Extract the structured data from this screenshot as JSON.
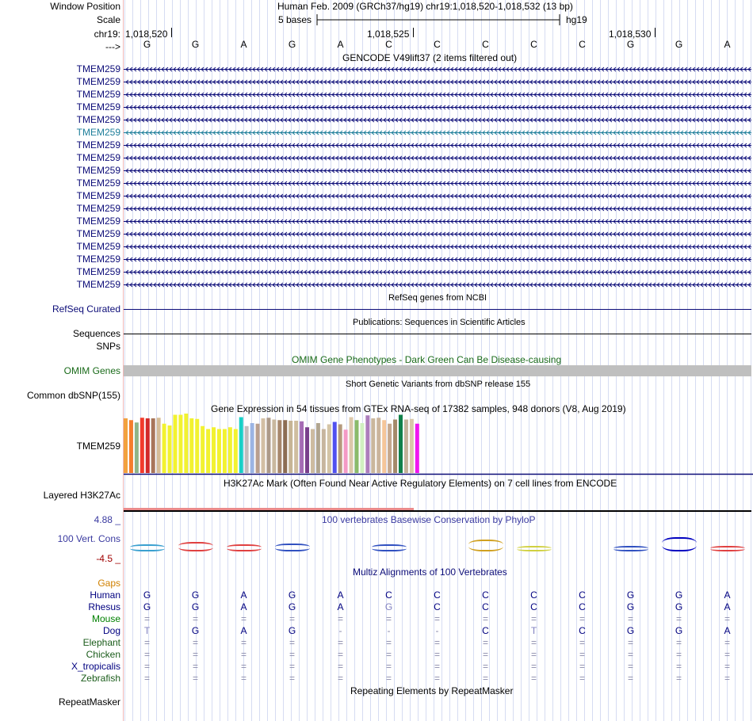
{
  "header": {
    "window_position_label": "Window Position",
    "scale_label": "Scale",
    "chrom_label": "chr19:",
    "strand_label": "--->",
    "assembly_title": "Human Feb. 2009 (GRCh37/hg19)   chr19:1,018,520-1,018,532 (13 bp)",
    "scale_text": "5 bases",
    "scale_db": "hg19",
    "ticks": [
      "1,018,520",
      "1,018,525",
      "1,018,530"
    ]
  },
  "bases": [
    "G",
    "G",
    "A",
    "G",
    "A",
    "C",
    "C",
    "C",
    "C",
    "C",
    "G",
    "G",
    "A"
  ],
  "gencode": {
    "title": "GENCODE V49lift37 (2 items filtered out)",
    "genes": [
      "TMEM259",
      "TMEM259",
      "TMEM259",
      "TMEM259",
      "TMEM259",
      "TMEM259",
      "TMEM259",
      "TMEM259",
      "TMEM259",
      "TMEM259",
      "TMEM259",
      "TMEM259",
      "TMEM259",
      "TMEM259",
      "TMEM259",
      "TMEM259",
      "TMEM259",
      "TMEM259"
    ],
    "highlight_index": 5,
    "gene_color": "#0c0c78",
    "highlight_color": "#1e7e9a"
  },
  "refseq": {
    "caption": "RefSeq genes from NCBI",
    "label": "RefSeq Curated"
  },
  "publications": {
    "caption": "Publications: Sequences in Scientific Articles",
    "label": "Sequences"
  },
  "snps": {
    "label": "SNPs"
  },
  "omim": {
    "caption": "OMIM Gene Phenotypes - Dark Green Can Be Disease-causing",
    "label": "OMIM Genes"
  },
  "dbsnp": {
    "caption": "Short Genetic Variants from dbSNP release 155",
    "label": "Common dbSNP(155)"
  },
  "gtex": {
    "caption": "Gene Expression in 54 tissues from GTEx RNA-seq of 17382 samples, 948 donors (V8, Aug 2019)",
    "label": "TMEM259",
    "values": [
      0.92,
      0.89,
      0.85,
      0.93,
      0.92,
      0.92,
      0.93,
      0.83,
      0.8,
      0.98,
      0.98,
      1.0,
      0.92,
      0.91,
      0.79,
      0.74,
      0.77,
      0.74,
      0.74,
      0.77,
      0.74,
      0.94,
      0.79,
      0.84,
      0.83,
      0.92,
      0.93,
      0.9,
      0.89,
      0.89,
      0.88,
      0.88,
      0.87,
      0.77,
      0.74,
      0.84,
      0.74,
      0.82,
      0.86,
      0.82,
      0.73,
      0.94,
      0.89,
      0.84,
      0.97,
      0.92,
      0.93,
      0.89,
      0.83,
      0.9,
      0.98,
      0.9,
      0.91,
      0.83
    ],
    "colors": [
      "#f2a13e",
      "#f57d2c",
      "#8fb487",
      "#f23b2c",
      "#d22929",
      "#a8755a",
      "#d6bc97",
      "#f2f230",
      "#f2f230",
      "#f2f230",
      "#f2f230",
      "#f2f230",
      "#f2f230",
      "#f2f230",
      "#f2f230",
      "#f2f230",
      "#f2f230",
      "#f2f230",
      "#f2f230",
      "#f2f230",
      "#f2f230",
      "#18d0c7",
      "#c1bcbd",
      "#9bb4e4",
      "#b99f8f",
      "#d3bfa4",
      "#ad9a89",
      "#c9b89e",
      "#a7876b",
      "#8d6d52",
      "#c6b595",
      "#cfbe9f",
      "#a56bb5",
      "#7a3f8c",
      "#cdbba0",
      "#b0a590",
      "#c7b59e",
      "#d4c4a6",
      "#5050f0",
      "#b49a7c",
      "#f49ac6",
      "#dcc8aa",
      "#8bbb6a",
      "#d1f0c0",
      "#ad7dbc",
      "#cab79c",
      "#cab49c",
      "#f5c69a",
      "#c6a88e",
      "#a58a6a",
      "#11804a",
      "#c4b29a",
      "#d8c8a8",
      "#f016f0"
    ]
  },
  "h3k27ac": {
    "caption": "H3K27Ac Mark (Often Found Near Active Regulatory Elements) on 7 cell lines from ENCODE",
    "label": "Layered H3K27Ac"
  },
  "phylop": {
    "caption": "100 vertebrates Basewise Conservation by PhyloP",
    "label": "100 Vert. Cons",
    "max_label": "4.88 _",
    "min_label": "-4.5 _",
    "heights": [
      0.3,
      0.5,
      0.3,
      0.4,
      0.0,
      0.3,
      0.0,
      0.7,
      0.1,
      0.0,
      0.2,
      0.9,
      0.1
    ],
    "colors": [
      "#3aa0d0",
      "#e04040",
      "#e04040",
      "#3050c0",
      "#ffffff",
      "#3050c0",
      "#ffffff",
      "#d0a020",
      "#d0d040",
      "#ffffff",
      "#3050c0",
      "#0000c0",
      "#e04040"
    ]
  },
  "multiz": {
    "caption": "Multiz Alignments of 100 Vertebrates",
    "gaps_label": "Gaps",
    "species": [
      {
        "name": "Human",
        "color": "#000080",
        "bases": [
          "G",
          "G",
          "A",
          "G",
          "A",
          "C",
          "C",
          "C",
          "C",
          "C",
          "G",
          "G",
          "A"
        ]
      },
      {
        "name": "Rhesus",
        "color": "#000080",
        "bases": [
          "G",
          "G",
          "A",
          "G",
          "A",
          "G",
          "C",
          "C",
          "C",
          "C",
          "G",
          "G",
          "A"
        ]
      },
      {
        "name": "Mouse",
        "color": "#008000",
        "bases": [
          "=",
          "=",
          "=",
          "=",
          "=",
          "=",
          "=",
          "=",
          "=",
          "=",
          "=",
          "=",
          "="
        ]
      },
      {
        "name": "Dog",
        "color": "#000080",
        "bases": [
          "T",
          "G",
          "A",
          "G",
          "-",
          "-",
          "-",
          "C",
          "T",
          "C",
          "G",
          "G",
          "A"
        ]
      },
      {
        "name": "Elephant",
        "color": "#1a5c1a",
        "bases": [
          "=",
          "=",
          "=",
          "=",
          "=",
          "=",
          "=",
          "=",
          "=",
          "=",
          "=",
          "=",
          "="
        ]
      },
      {
        "name": "Chicken",
        "color": "#1a5c1a",
        "bases": [
          "=",
          "=",
          "=",
          "=",
          "=",
          "=",
          "=",
          "=",
          "=",
          "=",
          "=",
          "=",
          "="
        ]
      },
      {
        "name": "X_tropicalis",
        "color": "#000080",
        "bases": [
          "=",
          "=",
          "=",
          "=",
          "=",
          "=",
          "=",
          "=",
          "=",
          "=",
          "=",
          "=",
          "="
        ]
      },
      {
        "name": "Zebrafish",
        "color": "#1a5c1a",
        "bases": [
          "=",
          "=",
          "=",
          "=",
          "=",
          "=",
          "=",
          "=",
          "=",
          "=",
          "=",
          "=",
          "="
        ]
      }
    ]
  },
  "repeatmasker": {
    "caption": "Repeating Elements by RepeatMasker",
    "label": "RepeatMasker"
  }
}
